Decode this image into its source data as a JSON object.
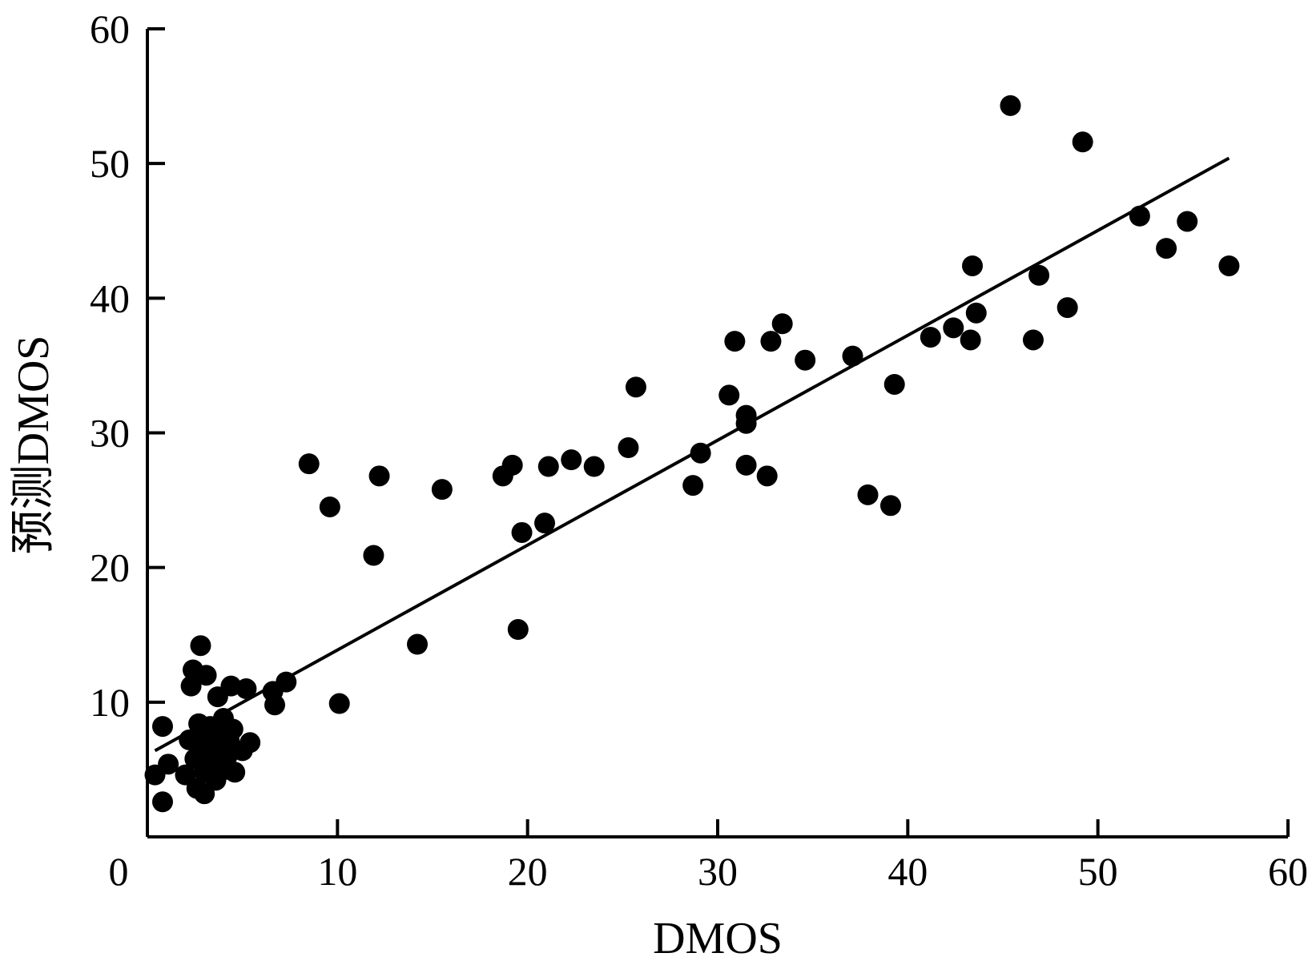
{
  "chart_data": {
    "type": "scatter",
    "xlabel": "DMOS",
    "ylabel": "预测DMOS",
    "xlim": [
      0,
      60
    ],
    "ylim": [
      0,
      60
    ],
    "xticks": [
      0,
      10,
      20,
      30,
      40,
      50,
      60
    ],
    "yticks": [
      10,
      20,
      30,
      40,
      50,
      60
    ],
    "xtick_labels": [
      "0",
      "10",
      "20",
      "30",
      "40",
      "50",
      "60"
    ],
    "ytick_labels": [
      "10",
      "20",
      "30",
      "40",
      "50",
      "60"
    ],
    "grid": false,
    "marker_color": "#000000",
    "points": [
      {
        "x": 0.4,
        "y": 4.6
      },
      {
        "x": 0.8,
        "y": 2.6
      },
      {
        "x": 0.8,
        "y": 8.2
      },
      {
        "x": 1.1,
        "y": 5.4
      },
      {
        "x": 2.0,
        "y": 4.6
      },
      {
        "x": 2.2,
        "y": 7.2
      },
      {
        "x": 2.3,
        "y": 11.2
      },
      {
        "x": 2.4,
        "y": 12.4
      },
      {
        "x": 2.5,
        "y": 5.8
      },
      {
        "x": 2.6,
        "y": 3.6
      },
      {
        "x": 2.7,
        "y": 8.4
      },
      {
        "x": 2.8,
        "y": 14.2
      },
      {
        "x": 2.9,
        "y": 6.6
      },
      {
        "x": 3.0,
        "y": 4.8
      },
      {
        "x": 3.0,
        "y": 7.8
      },
      {
        "x": 3.0,
        "y": 3.2
      },
      {
        "x": 3.1,
        "y": 12.0
      },
      {
        "x": 3.3,
        "y": 8.2
      },
      {
        "x": 3.4,
        "y": 5.6
      },
      {
        "x": 3.5,
        "y": 7.0
      },
      {
        "x": 3.6,
        "y": 4.2
      },
      {
        "x": 3.7,
        "y": 6.4
      },
      {
        "x": 3.7,
        "y": 10.4
      },
      {
        "x": 3.9,
        "y": 7.6
      },
      {
        "x": 4.0,
        "y": 8.8
      },
      {
        "x": 4.1,
        "y": 5.0
      },
      {
        "x": 4.2,
        "y": 6.0
      },
      {
        "x": 4.3,
        "y": 7.2
      },
      {
        "x": 4.4,
        "y": 11.2
      },
      {
        "x": 4.5,
        "y": 8.0
      },
      {
        "x": 4.6,
        "y": 4.8
      },
      {
        "x": 5.0,
        "y": 6.4
      },
      {
        "x": 5.2,
        "y": 11.0
      },
      {
        "x": 5.4,
        "y": 7.0
      },
      {
        "x": 6.6,
        "y": 10.8
      },
      {
        "x": 6.7,
        "y": 9.8
      },
      {
        "x": 7.3,
        "y": 11.5
      },
      {
        "x": 8.5,
        "y": 27.7
      },
      {
        "x": 9.6,
        "y": 24.5
      },
      {
        "x": 10.1,
        "y": 9.9
      },
      {
        "x": 11.9,
        "y": 20.9
      },
      {
        "x": 12.2,
        "y": 26.8
      },
      {
        "x": 14.2,
        "y": 14.3
      },
      {
        "x": 15.5,
        "y": 25.8
      },
      {
        "x": 18.7,
        "y": 26.8
      },
      {
        "x": 19.2,
        "y": 27.6
      },
      {
        "x": 19.5,
        "y": 15.4
      },
      {
        "x": 19.7,
        "y": 22.6
      },
      {
        "x": 20.9,
        "y": 23.3
      },
      {
        "x": 21.1,
        "y": 27.5
      },
      {
        "x": 22.3,
        "y": 28.0
      },
      {
        "x": 23.5,
        "y": 27.5
      },
      {
        "x": 25.3,
        "y": 28.9
      },
      {
        "x": 25.7,
        "y": 33.4
      },
      {
        "x": 28.7,
        "y": 26.1
      },
      {
        "x": 29.1,
        "y": 28.5
      },
      {
        "x": 30.6,
        "y": 32.8
      },
      {
        "x": 30.9,
        "y": 36.8
      },
      {
        "x": 31.5,
        "y": 31.3
      },
      {
        "x": 31.5,
        "y": 30.7
      },
      {
        "x": 31.5,
        "y": 27.6
      },
      {
        "x": 32.6,
        "y": 26.8
      },
      {
        "x": 32.8,
        "y": 36.8
      },
      {
        "x": 33.4,
        "y": 38.1
      },
      {
        "x": 34.6,
        "y": 35.4
      },
      {
        "x": 37.1,
        "y": 35.7
      },
      {
        "x": 37.9,
        "y": 25.4
      },
      {
        "x": 39.1,
        "y": 24.6
      },
      {
        "x": 39.3,
        "y": 33.6
      },
      {
        "x": 41.2,
        "y": 37.1
      },
      {
        "x": 42.4,
        "y": 37.8
      },
      {
        "x": 43.3,
        "y": 36.9
      },
      {
        "x": 43.4,
        "y": 42.4
      },
      {
        "x": 43.6,
        "y": 38.9
      },
      {
        "x": 45.4,
        "y": 54.3
      },
      {
        "x": 46.6,
        "y": 36.9
      },
      {
        "x": 46.9,
        "y": 41.7
      },
      {
        "x": 48.4,
        "y": 39.3
      },
      {
        "x": 49.2,
        "y": 51.6
      },
      {
        "x": 52.2,
        "y": 46.1
      },
      {
        "x": 53.6,
        "y": 43.7
      },
      {
        "x": 54.7,
        "y": 45.7
      },
      {
        "x": 56.9,
        "y": 42.4
      }
    ],
    "fit_line": {
      "x": [
        0.4,
        56.9
      ],
      "y": [
        6.4,
        50.4
      ]
    }
  }
}
